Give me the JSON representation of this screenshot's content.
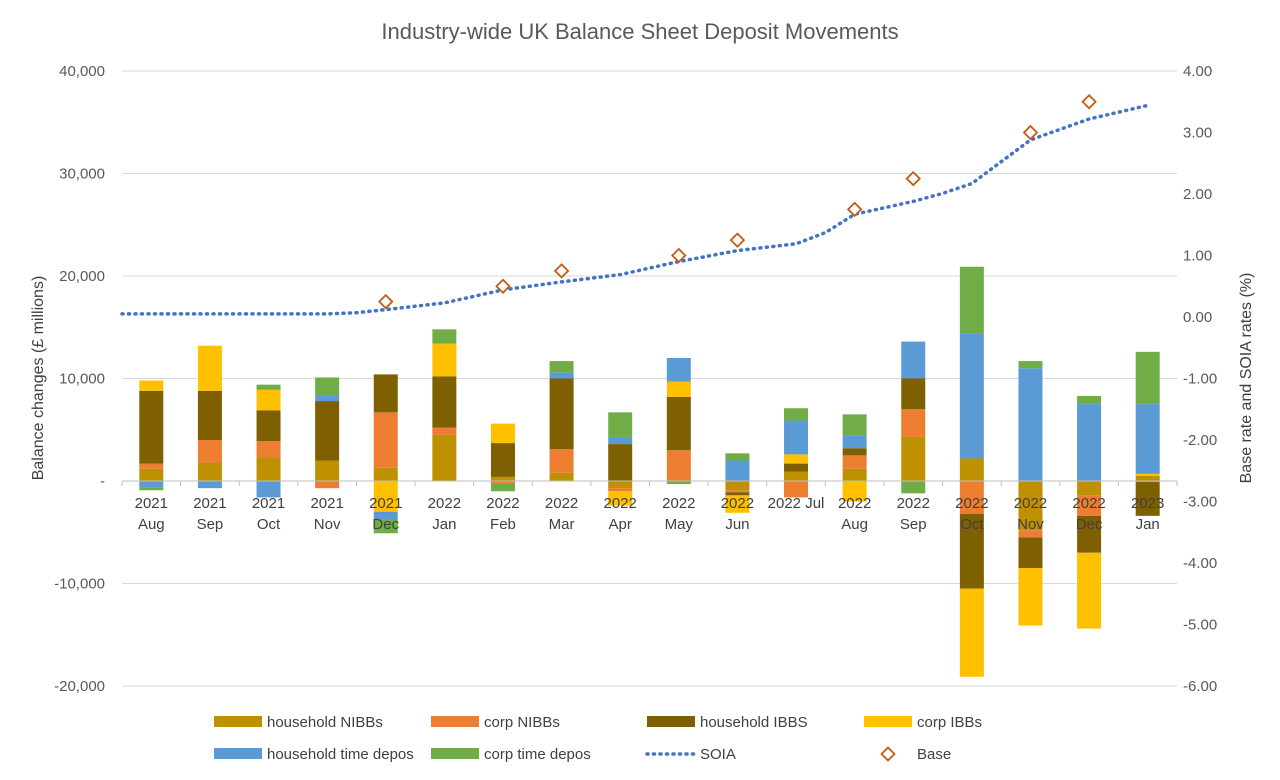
{
  "chart_data": {
    "type": "bar",
    "stacked": true,
    "title": "Industry-wide UK Balance Sheet Deposit Movements",
    "ylabel": "Balance changes (£ millions)",
    "y2label": "Base rate and SOIA rates (%)",
    "ylim": [
      -20000,
      40000
    ],
    "y2lim": [
      -6,
      4
    ],
    "yticks": [
      "-20,000",
      "-10,000",
      "-",
      "10,000",
      "20,000",
      "30,000",
      "40,000"
    ],
    "y2ticks": [
      "-6.00",
      "-5.00",
      "-4.00",
      "-3.00",
      "-2.00",
      "-1.00",
      "0.00",
      "1.00",
      "2.00",
      "3.00",
      "4.00"
    ],
    "categories": [
      [
        "2021",
        "Aug"
      ],
      [
        "2021",
        "Sep"
      ],
      [
        "2021",
        "Oct"
      ],
      [
        "2021",
        "Nov"
      ],
      [
        "2021",
        "Dec"
      ],
      [
        "2022",
        "Jan"
      ],
      [
        "2022",
        "Feb"
      ],
      [
        "2022",
        "Mar"
      ],
      [
        "2022",
        "Apr"
      ],
      [
        "2022",
        "May"
      ],
      [
        "2022",
        "Jun"
      ],
      [
        "2022 Jul",
        ""
      ],
      [
        "2022",
        "Aug"
      ],
      [
        "2022",
        "Sep"
      ],
      [
        "2022",
        "Oct"
      ],
      [
        "2022",
        "Nov"
      ],
      [
        "2022",
        "Dec"
      ],
      [
        "2023",
        "Jan"
      ]
    ],
    "series": [
      {
        "name": "household NIBBs",
        "color": "#bf9000",
        "values": [
          1200,
          1800,
          2300,
          2000,
          1300,
          4500,
          400,
          800,
          -700,
          0,
          -900,
          900,
          1200,
          4300,
          2200,
          -4800,
          -1400,
          500
        ]
      },
      {
        "name": "corp NIBBs",
        "color": "#ed7d31",
        "values": [
          500,
          2200,
          1600,
          -700,
          5400,
          700,
          -200,
          2300,
          -300,
          3000,
          -200,
          -1600,
          1300,
          2700,
          -3200,
          -700,
          -2000,
          -100
        ]
      },
      {
        "name": "household IBBS",
        "color": "#7f6000",
        "values": [
          7100,
          4800,
          3000,
          5800,
          3700,
          5000,
          3300,
          6900,
          3600,
          5200,
          -300,
          800,
          700,
          3000,
          -7300,
          -3000,
          -3600,
          -3300
        ]
      },
      {
        "name": "corp IBBs",
        "color": "#ffc000",
        "values": [
          1000,
          4400,
          2000,
          0,
          -3000,
          3200,
          1900,
          0,
          -1400,
          1500,
          -1700,
          900,
          -2000,
          0,
          -8600,
          -5600,
          -7400,
          200
        ]
      },
      {
        "name": "household time depos",
        "color": "#5b9bd5",
        "values": [
          -600,
          -700,
          -1600,
          500,
          -800,
          0,
          0,
          600,
          700,
          2300,
          2000,
          3300,
          1200,
          3600,
          12200,
          11000,
          7500,
          6800
        ]
      },
      {
        "name": "corp time depos",
        "color": "#70ad47",
        "values": [
          -300,
          0,
          500,
          1800,
          -1300,
          1400,
          -800,
          1100,
          2400,
          -300,
          700,
          1200,
          2100,
          -1200,
          6500,
          700,
          800,
          5100
        ]
      }
    ],
    "lines": [
      {
        "name": "SOIA",
        "axis": "secondary",
        "style": "dotted",
        "color": "#4472c4",
        "x": [
          -0.5,
          0,
          1,
          2,
          3,
          3.5,
          4,
          5,
          6,
          7,
          8,
          9,
          10,
          11,
          11.5,
          12,
          13,
          13.5,
          14,
          15,
          16,
          17
        ],
        "values": [
          0.05,
          0.05,
          0.05,
          0.05,
          0.05,
          0.07,
          0.12,
          0.23,
          0.44,
          0.57,
          0.69,
          0.9,
          1.08,
          1.19,
          1.37,
          1.67,
          1.88,
          2.01,
          2.17,
          2.88,
          3.22,
          3.44
        ]
      },
      {
        "name": "Base",
        "axis": "secondary",
        "style": "markers",
        "marker": "diamond",
        "color": "#c55a11",
        "x": [
          4,
          6,
          7,
          9,
          10,
          12,
          13,
          15,
          16
        ],
        "values": [
          0.25,
          0.5,
          0.75,
          1.0,
          1.25,
          1.75,
          2.25,
          3.0,
          3.5
        ]
      }
    ],
    "legend": "bottom",
    "grid": true
  }
}
